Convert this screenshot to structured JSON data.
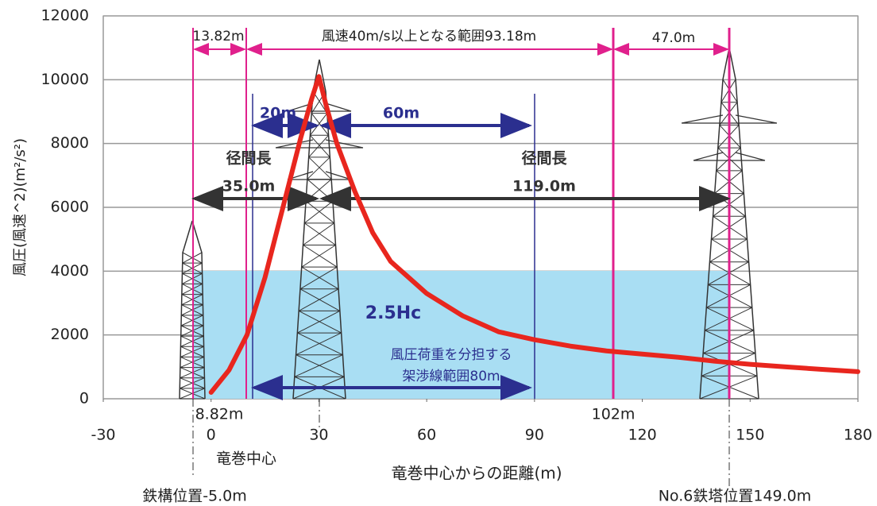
{
  "chart_data": {
    "type": "line",
    "xlabel": "竜巻中心からの距離(m)",
    "ylabel": "風圧(風速^2)(m²/s²)",
    "x": [
      0,
      5,
      10,
      15,
      20,
      25,
      28,
      30,
      32,
      35,
      40,
      45,
      50,
      60,
      70,
      80,
      90,
      100,
      110,
      120,
      130,
      140,
      150,
      160,
      170,
      180
    ],
    "series": [
      {
        "color": "#e8261e",
        "values": [
          200,
          900,
          2000,
          3800,
          6000,
          8200,
          9400,
          10100,
          9200,
          8000,
          6500,
          5200,
          4300,
          3300,
          2600,
          2100,
          1850,
          1650,
          1500,
          1400,
          1300,
          1180,
          1080,
          1000,
          920,
          850
        ]
      }
    ],
    "xlim": [
      -30,
      180
    ],
    "xticks": [
      -30,
      0,
      30,
      60,
      90,
      120,
      150,
      180
    ],
    "ylim": [
      0,
      12000
    ],
    "yticks": [
      0,
      2000,
      4000,
      6000,
      8000,
      10000,
      12000
    ],
    "grid": true,
    "annotations": [
      "13.82m",
      "風速40m/s以上となる範囲93.18m",
      "47.0m",
      "20m",
      "60m",
      "径間長",
      "35.0m",
      "径間長",
      "119.0m",
      "2.5Hc",
      "風圧荷重を分担する",
      "架渉線範囲80m",
      "8.82m",
      "102m",
      "竜巻中心",
      "鉄構位置-5.0m",
      "No.6鉄塔位置149.0m"
    ]
  }
}
